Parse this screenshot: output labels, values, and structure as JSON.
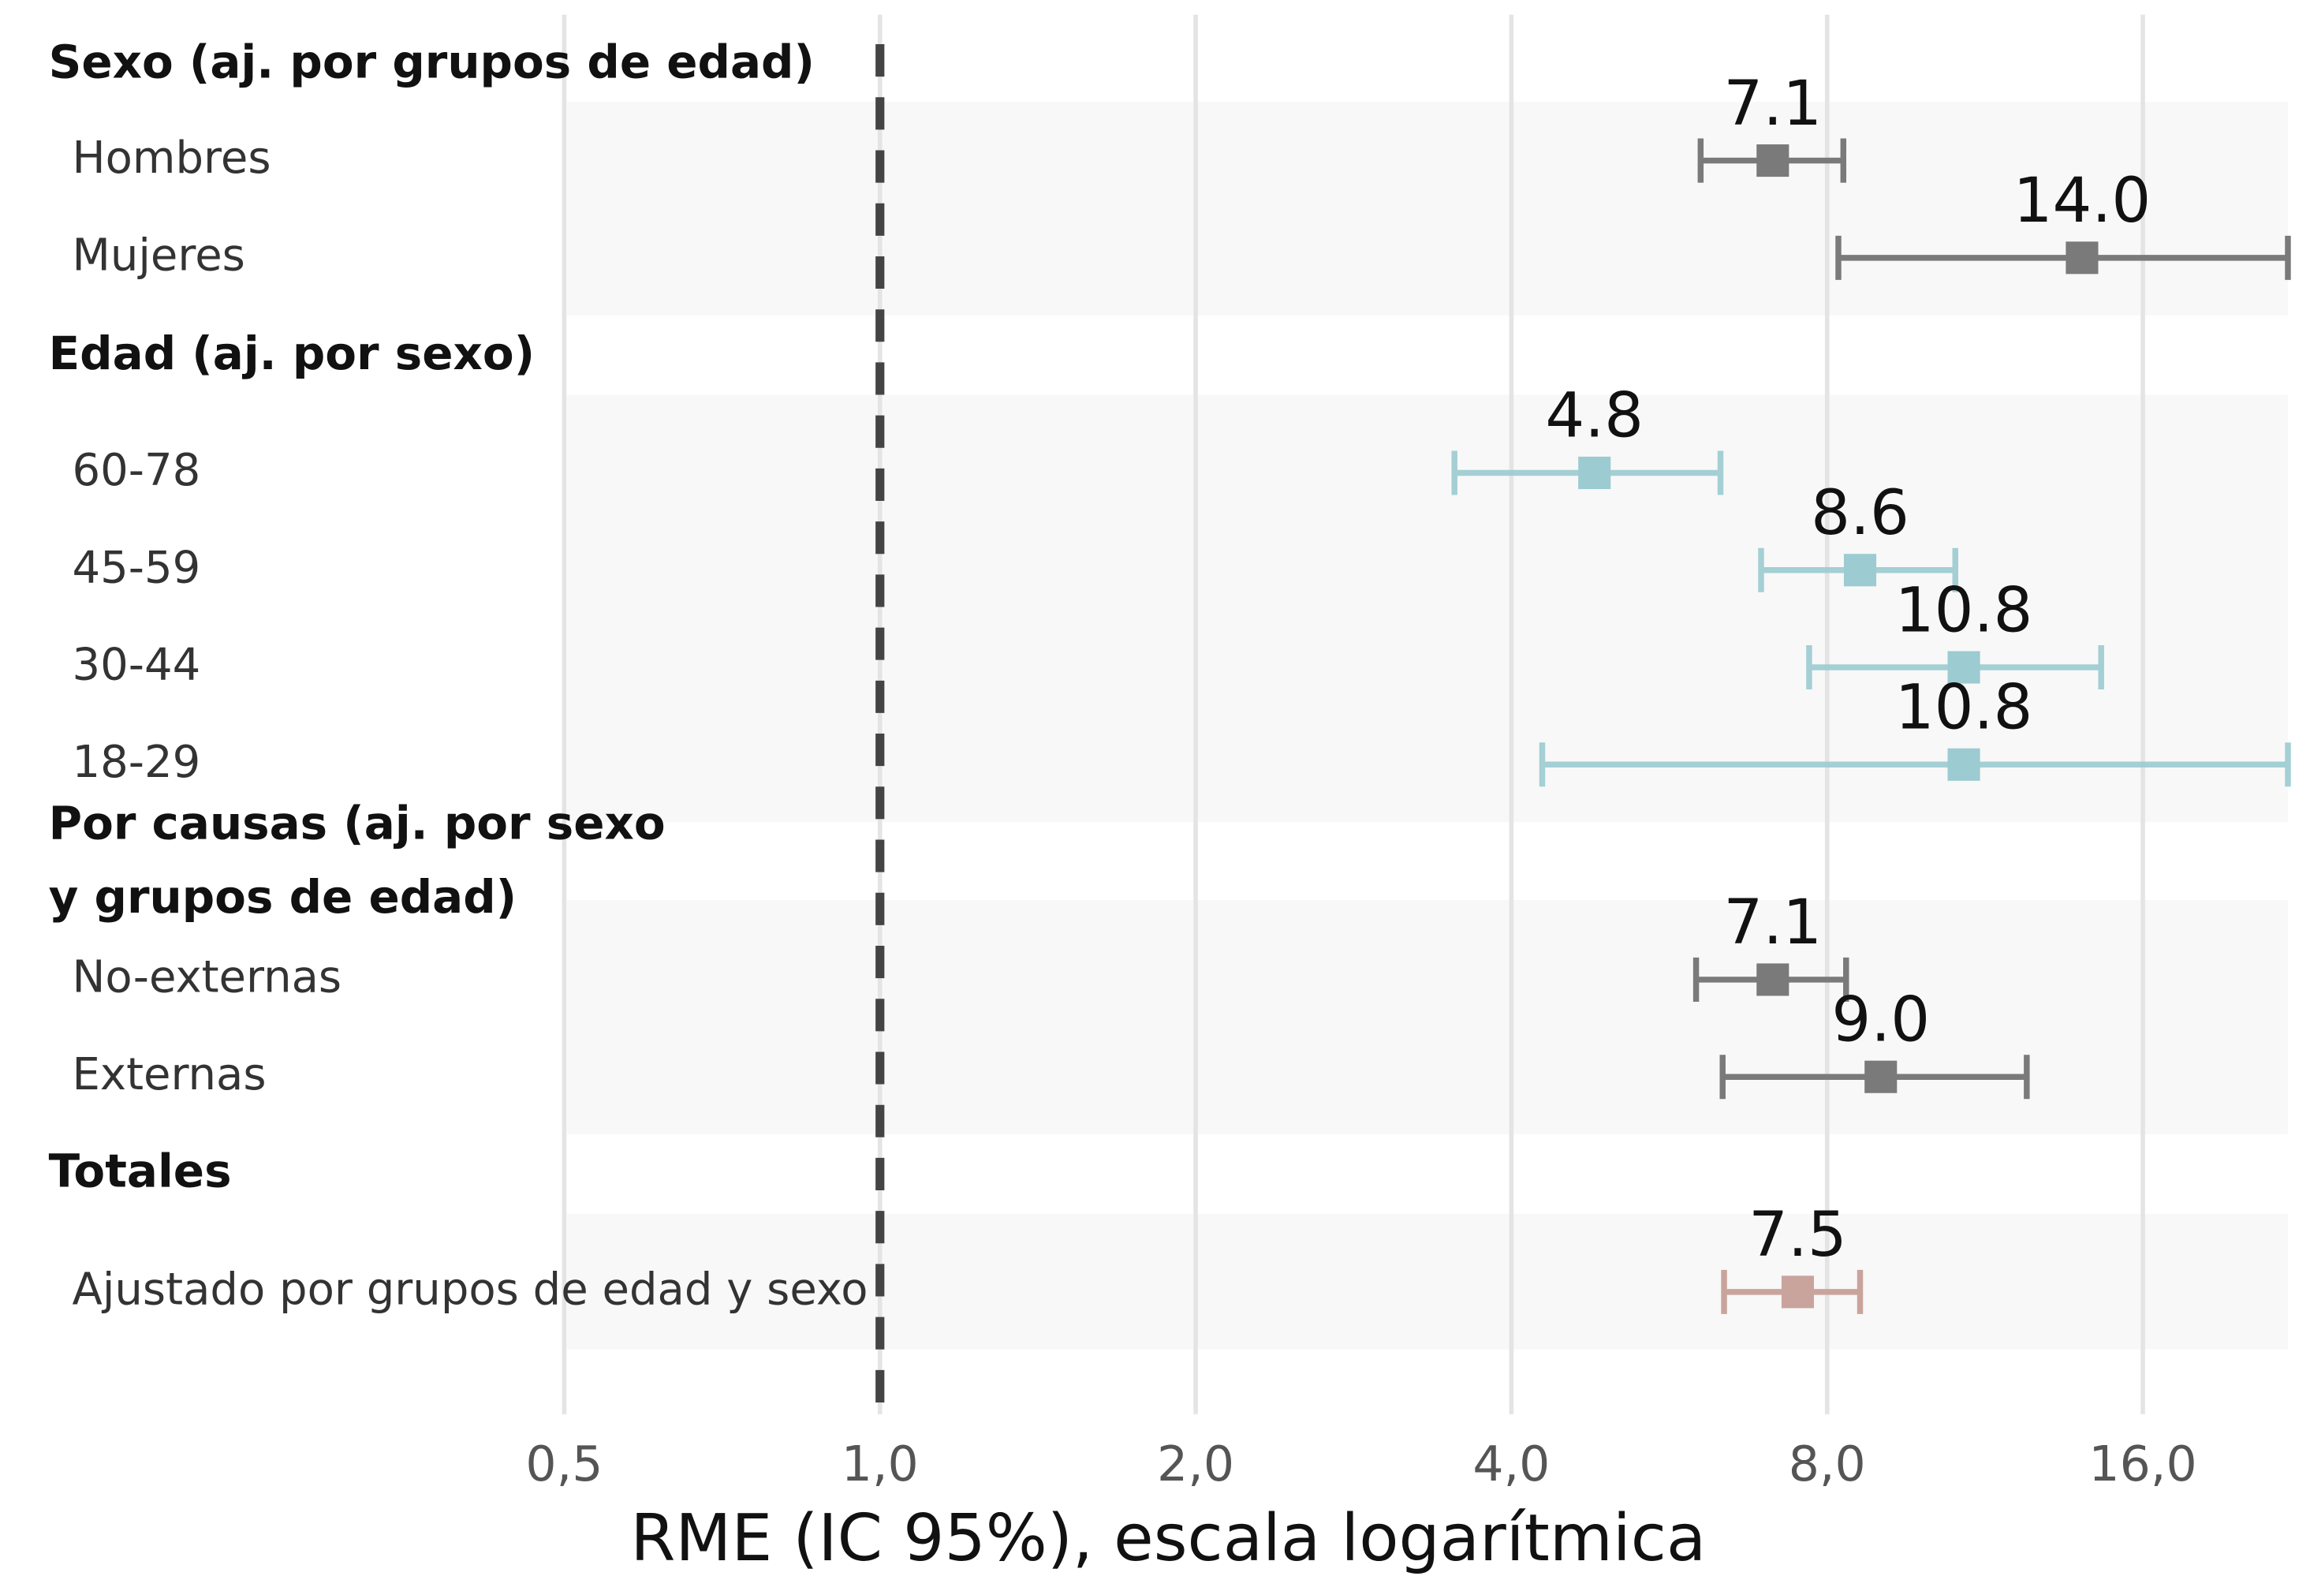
{
  "chart_data": {
    "type": "forest",
    "x_label": "RME (IC 95%), escala logarítmica",
    "log_scale": true,
    "grid": true,
    "reference_line": 1,
    "xlim": [
      0.5,
      22
    ],
    "xticks": [
      {
        "value": 0.5,
        "label": "0,5"
      },
      {
        "value": 1,
        "label": "1,0"
      },
      {
        "value": 2,
        "label": "2,0"
      },
      {
        "value": 4,
        "label": "4,0"
      },
      {
        "value": 8,
        "label": "8,0"
      },
      {
        "value": 16,
        "label": "16,0"
      }
    ],
    "groups": [
      {
        "name": "Sexo (aj. por grupos de edad)",
        "color": "#7a7a7a",
        "rows": [
          {
            "label": "Hombres",
            "value": 7.1,
            "value_label": "7.1",
            "lower": 6.06,
            "upper": 8.29
          },
          {
            "label": "Mujeres",
            "value": 14,
            "value_label": "14.0",
            "lower": 8.2,
            "upper": 22
          }
        ]
      },
      {
        "name": "Edad (aj. por sexo)",
        "color": "#9ccbd1",
        "rows": [
          {
            "label": "60-78",
            "value": 4.8,
            "value_label": "4.8",
            "lower": 3.53,
            "upper": 6.33
          },
          {
            "label": "45-59",
            "value": 8.6,
            "value_label": "8.6",
            "lower": 6.92,
            "upper": 10.6
          },
          {
            "label": "30-44",
            "value": 10.8,
            "value_label": "10.8",
            "lower": 7.69,
            "upper": 14.6
          },
          {
            "label": "18-29",
            "value": 10.8,
            "value_label": "10.8",
            "lower": 4.28,
            "upper": 22
          }
        ]
      },
      {
        "name": "Por causas (aj. por sexo\ny grupos de edad)",
        "color": "#7a7a7a",
        "rows": [
          {
            "label": "No-externas",
            "value": 7.1,
            "value_label": "7.1",
            "lower": 6.0,
            "upper": 8.34
          },
          {
            "label": "Externas",
            "value": 9,
            "value_label": "9.0",
            "lower": 6.36,
            "upper": 12.4
          }
        ]
      },
      {
        "name": "Totales",
        "color": "#c9a49d",
        "rows": [
          {
            "label": "Ajustado por grupos de edad y sexo",
            "value": 7.5,
            "value_label": "7.5",
            "lower": 6.38,
            "upper": 8.6
          }
        ]
      }
    ]
  }
}
